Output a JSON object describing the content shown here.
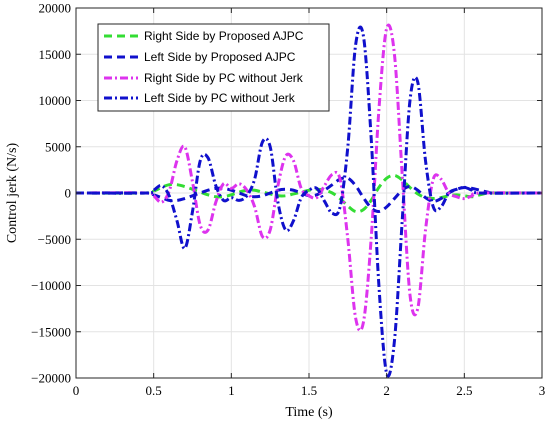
{
  "chart_data": {
    "type": "line",
    "title": "",
    "xlabel": "Time (s)",
    "ylabel": "Control jerk (N/s)",
    "xlim": [
      0,
      3
    ],
    "ylim": [
      -20000,
      20000
    ],
    "grid": true,
    "legend_position": "top-left",
    "x_ticks": [
      0,
      0.5,
      1,
      1.5,
      2,
      2.5,
      3
    ],
    "x_tick_labels": [
      "0",
      "0.5",
      "1",
      "1.5",
      "2",
      "2.5",
      "3"
    ],
    "y_ticks": [
      -20000,
      -15000,
      -10000,
      -5000,
      0,
      5000,
      10000,
      15000,
      20000
    ],
    "y_tick_labels": [
      "−20000",
      "−15000",
      "−10000",
      "−5000",
      "0",
      "5000",
      "10000",
      "15000",
      "20000"
    ],
    "series": [
      {
        "name": "Right Side by Proposed AJPC",
        "color": "#33dd33",
        "dash": "dashed",
        "x": [
          0,
          0.45,
          0.5,
          0.55,
          0.6,
          0.65,
          0.7,
          0.75,
          0.8,
          0.85,
          0.9,
          0.95,
          1.0,
          1.05,
          1.1,
          1.15,
          1.2,
          1.25,
          1.3,
          1.35,
          1.4,
          1.45,
          1.5,
          1.55,
          1.6,
          1.65,
          1.7,
          1.75,
          1.8,
          1.85,
          1.9,
          1.95,
          2.0,
          2.05,
          2.1,
          2.15,
          2.2,
          2.25,
          2.3,
          2.35,
          2.4,
          2.45,
          2.5,
          2.55,
          2.6,
          2.65,
          2.7,
          3.0
        ],
        "y": [
          0,
          0,
          200,
          600,
          900,
          900,
          700,
          400,
          100,
          -200,
          -400,
          -400,
          -200,
          100,
          300,
          300,
          100,
          -100,
          -300,
          -300,
          -100,
          100,
          300,
          400,
          300,
          0,
          -600,
          -1400,
          -2000,
          -1800,
          -800,
          600,
          1600,
          1900,
          1400,
          600,
          -100,
          -500,
          -600,
          -500,
          -300,
          -200,
          -300,
          -400,
          -200,
          0,
          0,
          0
        ]
      },
      {
        "name": "Left Side by Proposed AJPC",
        "color": "#1010cc",
        "dash": "dashed",
        "x": [
          0,
          0.45,
          0.5,
          0.55,
          0.6,
          0.65,
          0.7,
          0.75,
          0.8,
          0.85,
          0.9,
          0.95,
          1.0,
          1.05,
          1.1,
          1.15,
          1.2,
          1.25,
          1.3,
          1.35,
          1.4,
          1.45,
          1.5,
          1.55,
          1.6,
          1.65,
          1.7,
          1.75,
          1.8,
          1.85,
          1.9,
          1.95,
          2.0,
          2.05,
          2.1,
          2.15,
          2.2,
          2.25,
          2.3,
          2.35,
          2.4,
          2.45,
          2.5,
          2.55,
          2.6,
          2.65,
          2.7,
          3.0
        ],
        "y": [
          0,
          0,
          -200,
          -500,
          -800,
          -800,
          -600,
          -300,
          0,
          300,
          500,
          500,
          300,
          0,
          -300,
          -400,
          -300,
          0,
          300,
          400,
          300,
          0,
          -300,
          -200,
          300,
          900,
          1500,
          1600,
          800,
          -500,
          -1600,
          -2000,
          -1500,
          -600,
          300,
          700,
          300,
          -500,
          -900,
          -600,
          0,
          400,
          600,
          500,
          300,
          100,
          0,
          0
        ]
      },
      {
        "name": "Right Side by PC without Jerk",
        "color": "#dd33ee",
        "dash": "dashdot",
        "x": [
          0,
          0.45,
          0.5,
          0.55,
          0.6,
          0.65,
          0.7,
          0.75,
          0.8,
          0.85,
          0.9,
          0.95,
          1.0,
          1.05,
          1.1,
          1.15,
          1.2,
          1.25,
          1.3,
          1.35,
          1.4,
          1.45,
          1.5,
          1.55,
          1.6,
          1.65,
          1.7,
          1.75,
          1.8,
          1.85,
          1.9,
          1.95,
          2.0,
          2.05,
          2.1,
          2.15,
          2.2,
          2.25,
          2.3,
          2.35,
          2.4,
          2.45,
          2.5,
          2.55,
          2.6,
          3.0
        ],
        "y": [
          0,
          0,
          -300,
          -1000,
          200,
          3500,
          5000,
          1200,
          -3500,
          -4000,
          -1000,
          1000,
          500,
          1000,
          300,
          -1500,
          -4700,
          -4000,
          800,
          4000,
          3500,
          500,
          -300,
          -500,
          800,
          2000,
          1500,
          -5000,
          -13500,
          -14000,
          -5000,
          9000,
          17800,
          15000,
          2000,
          -11000,
          -12500,
          -4000,
          1500,
          1500,
          0,
          -400,
          -600,
          -300,
          0,
          0
        ]
      },
      {
        "name": "Left Side by PC without Jerk",
        "color": "#1010cc",
        "dash": "dashdot",
        "x": [
          0,
          0.45,
          0.5,
          0.55,
          0.6,
          0.65,
          0.7,
          0.75,
          0.8,
          0.85,
          0.9,
          0.95,
          1.0,
          1.05,
          1.1,
          1.15,
          1.2,
          1.25,
          1.3,
          1.35,
          1.4,
          1.45,
          1.5,
          1.55,
          1.6,
          1.65,
          1.7,
          1.75,
          1.8,
          1.85,
          1.9,
          1.95,
          2.0,
          2.05,
          2.1,
          2.15,
          2.2,
          2.25,
          2.3,
          2.35,
          2.4,
          2.45,
          2.5,
          2.55,
          2.6,
          3.0
        ],
        "y": [
          0,
          0,
          300,
          800,
          -300,
          -3000,
          -6000,
          -2000,
          3500,
          3800,
          800,
          -800,
          -500,
          -800,
          -300,
          1500,
          5500,
          5000,
          -1000,
          -4000,
          -3000,
          -500,
          300,
          500,
          -900,
          -2200,
          -1500,
          5000,
          16000,
          17000,
          6000,
          -10000,
          -19500,
          -16000,
          -3000,
          10000,
          12000,
          3500,
          -1500,
          -1500,
          0,
          400,
          600,
          300,
          0,
          0
        ]
      }
    ]
  }
}
